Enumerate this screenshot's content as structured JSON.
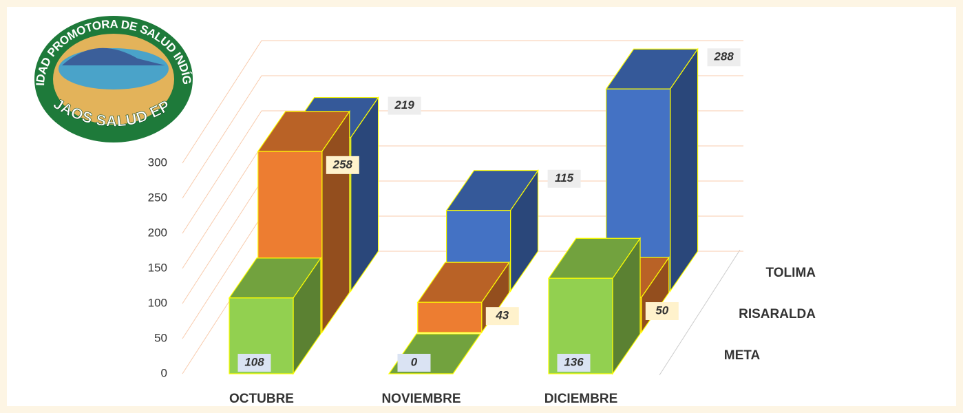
{
  "logo": {
    "top_text": "ENTIDAD PROMOTORA DE SALUD INDÍGENA",
    "bottom_text": "PIJAOS SALUD EPS I"
  },
  "chart_data": {
    "type": "bar3d",
    "categories": [
      "OCTUBRE",
      "NOVIEMBRE",
      "DICIEMBRE"
    ],
    "series": [
      {
        "name": "META",
        "color": "#92d050",
        "values": [
          108,
          0,
          136
        ]
      },
      {
        "name": "RISARALDA",
        "color": "#ed7d31",
        "values": [
          258,
          43,
          50
        ]
      },
      {
        "name": "TOLIMA",
        "color": "#4472c4",
        "values": [
          219,
          115,
          288
        ]
      }
    ],
    "ylim": [
      0,
      300
    ],
    "yticks": [
      0,
      50,
      100,
      150,
      200,
      250,
      300
    ],
    "grid": true
  }
}
